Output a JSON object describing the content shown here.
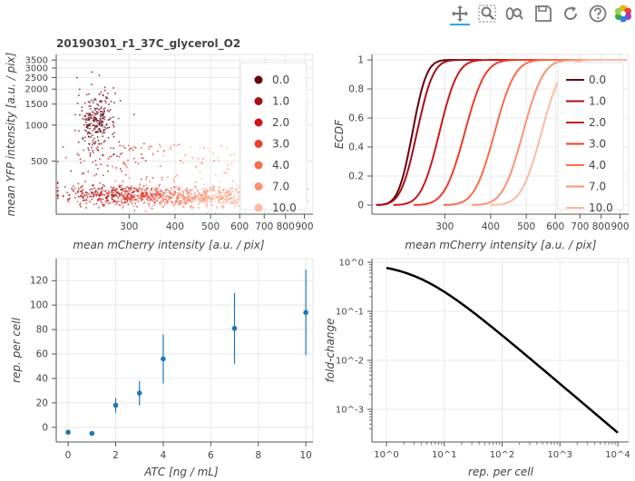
{
  "toolbar": {
    "tools": [
      "pan-tool",
      "box-zoom-tool",
      "wheel-zoom-tool",
      "save-tool",
      "reset-tool",
      "help-tool"
    ]
  },
  "colors": {
    "ecdf": [
      "#67000d",
      "#a50f15",
      "#cb181d",
      "#ef3b2c",
      "#fb6a4a",
      "#fc9272",
      "#fcbba1"
    ],
    "points": "#1f77b4",
    "curve": "#000000",
    "grid": "#e8e8e8"
  },
  "chart_data": [
    {
      "type": "scatter",
      "title": "20190301_r1_37C_glycerol_O2",
      "xlabel": "mean mCherry intensity [a.u. / pix]",
      "ylabel": "mean YFP intensity [a.u. / pix]",
      "x_scale": "log",
      "y_scale": "log",
      "xlim": [
        190,
        950
      ],
      "ylim": [
        180,
        3900
      ],
      "x_ticks": [
        "300",
        "400",
        "500",
        "600",
        "700",
        "800",
        "900"
      ],
      "y_ticks": [
        "500",
        "1000",
        "1500",
        "2000",
        "2500",
        "3000",
        "3500"
      ],
      "legend_position": "top-right",
      "series": [
        {
          "name": "0.0",
          "x_center": 245,
          "y_center": 1100
        },
        {
          "name": "1.0",
          "x_center": 252,
          "y_center": 265
        },
        {
          "name": "2.0",
          "x_center": 285,
          "y_center": 260
        },
        {
          "name": "3.0",
          "x_center": 330,
          "y_center": 255
        },
        {
          "name": "4.0",
          "x_center": 400,
          "y_center": 255
        },
        {
          "name": "7.0",
          "x_center": 480,
          "y_center": 250
        },
        {
          "name": "10.0",
          "x_center": 560,
          "y_center": 245
        }
      ]
    },
    {
      "type": "line",
      "xlabel": "mean mCherry intensity [a.u. / pix]",
      "ylabel": "ECDF",
      "x_scale": "log",
      "xlim": [
        190,
        950
      ],
      "ylim": [
        0,
        1
      ],
      "x_ticks": [
        "300",
        "400",
        "500",
        "600",
        "700",
        "800",
        "900"
      ],
      "y_ticks": [
        "0",
        "0.2",
        "0.4",
        "0.6",
        "0.8",
        "1"
      ],
      "legend_position": "right",
      "series": [
        {
          "name": "0.0",
          "median": 245,
          "spread": 0.07
        },
        {
          "name": "1.0",
          "median": 252,
          "spread": 0.08
        },
        {
          "name": "2.0",
          "median": 290,
          "spread": 0.09
        },
        {
          "name": "3.0",
          "median": 340,
          "spread": 0.1
        },
        {
          "name": "4.0",
          "median": 410,
          "spread": 0.1
        },
        {
          "name": "7.0",
          "median": 490,
          "spread": 0.1
        },
        {
          "name": "10.0",
          "median": 550,
          "spread": 0.1
        }
      ]
    },
    {
      "type": "scatter",
      "xlabel": "ATC [ng / mL]",
      "ylabel": "rep. per cell",
      "xlim": [
        -0.5,
        10.3
      ],
      "ylim": [
        -12,
        138
      ],
      "x_ticks": [
        "0",
        "2",
        "4",
        "6",
        "8",
        "10"
      ],
      "y_ticks": [
        "0",
        "20",
        "40",
        "60",
        "80",
        "100",
        "120"
      ],
      "points": [
        {
          "x": 0,
          "y": -4,
          "err": 0
        },
        {
          "x": 1,
          "y": -5,
          "err": 0
        },
        {
          "x": 2,
          "y": 18,
          "err": 6
        },
        {
          "x": 3,
          "y": 28,
          "err": 10
        },
        {
          "x": 4,
          "y": 56,
          "err": 20
        },
        {
          "x": 7,
          "y": 81,
          "err": 29
        },
        {
          "x": 10,
          "y": 94,
          "err": 35
        }
      ]
    },
    {
      "type": "line",
      "xlabel": "rep. per cell",
      "ylabel": "fold-change",
      "x_scale": "log",
      "y_scale": "log",
      "xlim": [
        1,
        10000
      ],
      "ylim": [
        0.00036,
        1.0
      ],
      "x_ticks": [
        "10^0",
        "10^1",
        "10^2",
        "10^3",
        "10^4"
      ],
      "y_ticks": [
        "10^0",
        "10^-1",
        "10^-2",
        "10^-3"
      ],
      "curve": {
        "formula": "fold-change = 1 / (1 + 0.3 · R)",
        "x_start": 1,
        "x_end": 10000
      }
    }
  ]
}
